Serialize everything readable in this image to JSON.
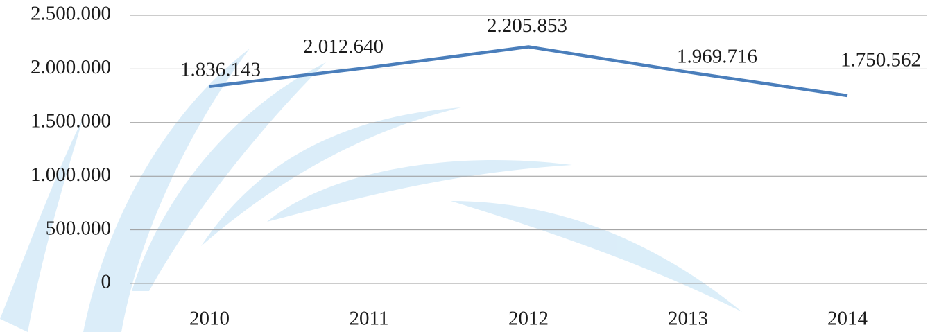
{
  "chart_data": {
    "type": "line",
    "categories": [
      "2010",
      "2011",
      "2012",
      "2013",
      "2014"
    ],
    "series": [
      {
        "color": "#4a7ebb",
        "values": [
          1836143,
          2012640,
          2205853,
          1969716,
          1750562
        ],
        "value_labels": [
          "1.836.143",
          "2.012.640",
          "2.205.853",
          "1.969.716",
          "1.750.562"
        ]
      }
    ],
    "ylim": [
      0,
      2500000
    ],
    "yticks": [
      0,
      {
        "value": 500000,
        "label": "500.000"
      },
      {
        "value": 1000000,
        "label": "1.000.000"
      },
      {
        "value": 1500000,
        "label": "1.500.000"
      },
      {
        "value": 2000000,
        "label": "2.000.000"
      },
      {
        "value": 2500000,
        "label": "2.500.000"
      }
    ],
    "grid": true
  }
}
